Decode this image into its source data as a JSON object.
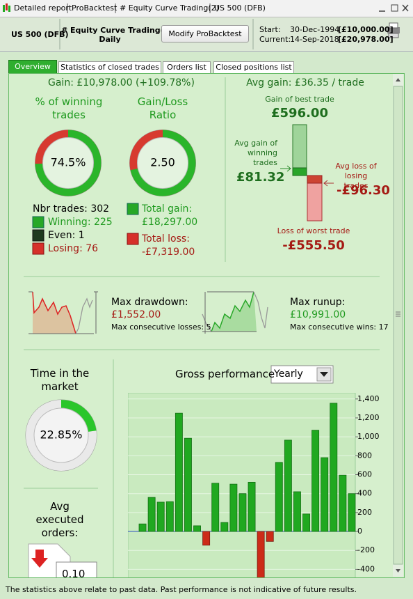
{
  "window": {
    "title_items": [
      "Detailed report",
      "ProBacktest",
      "# Equity Curve Trading(2)",
      "US 500 (DFB)"
    ]
  },
  "header": {
    "instrument": "US 500 (DFB)",
    "system": "# Equity Curve Trading(2)",
    "timeframe": "Daily",
    "button": "Modify ProBacktest",
    "start_label": "Start:",
    "start_date": "30-Dec-1994",
    "start_capital": "[£10,000.00]",
    "current_label": "Current:",
    "current_date": "14-Sep-2018",
    "current_capital": "[£20,978.00]"
  },
  "tabs": [
    "Overview",
    "Statistics of closed trades",
    "Orders list",
    "Closed positions list"
  ],
  "overview": {
    "gain": "Gain: £10,978.00 (+109.78%)",
    "winning_title": "% of winning trades",
    "winning_pct": {
      "value": 74.5,
      "label": "74.5%"
    },
    "ratio_title": "Gain/Loss Ratio",
    "ratio": {
      "value": 2.5,
      "label": "2.50"
    },
    "nbr_trades": "Nbr trades: 302",
    "winning": "Winning: 225",
    "even": "Even: 1",
    "losing": "Losing: 76",
    "total_gain_label": "Total gain:",
    "total_gain": "£18,297.00",
    "total_loss_label": "Total loss:",
    "total_loss": "-£7,319.00",
    "avg_gain": "Avg gain: £36.35 / trade",
    "best_label": "Gain of best trade",
    "best": "£596.00",
    "avg_win_label": "Avg gain of winning trades",
    "avg_win": "£81.32",
    "avg_loss_label": "Avg loss of losing trades",
    "avg_loss": "-£96.30",
    "worst_label": "Loss of worst trade",
    "worst": "-£555.50",
    "drawdown_label": "Max drawdown:",
    "drawdown": "£1,552.00",
    "consec_losses": "Max consecutive losses: 5",
    "runup_label": "Max runup:",
    "runup": "£10,991.00",
    "consec_wins": "Max consecutive wins: 17",
    "time_title": "Time in the market",
    "time_pct": {
      "value": 22.85,
      "label": "22.85%"
    },
    "orders_title": "Avg executed orders:",
    "orders_value": "0.10",
    "perf_title": "Gross performance",
    "perf_period": "Yearly"
  },
  "chart_data": {
    "type": "bar",
    "values": [
      80,
      360,
      310,
      315,
      1250,
      985,
      60,
      -145,
      510,
      95,
      500,
      400,
      520,
      -520,
      -105,
      730,
      965,
      420,
      185,
      1070,
      780,
      1355,
      595,
      400
    ],
    "color": "#20a820",
    "negative_color": "#cc2b18",
    "ylim": [
      -500,
      1450
    ],
    "yticks": [
      {
        "value": 1400,
        "label": "1,400"
      },
      {
        "value": 1200,
        "label": "1,200"
      },
      {
        "value": 1000,
        "label": "1,000"
      },
      800,
      600,
      400,
      200,
      0,
      -200,
      -400
    ],
    "grid": true
  },
  "footer": "The statistics above relate to past data. Past performance is not indicative of future results."
}
